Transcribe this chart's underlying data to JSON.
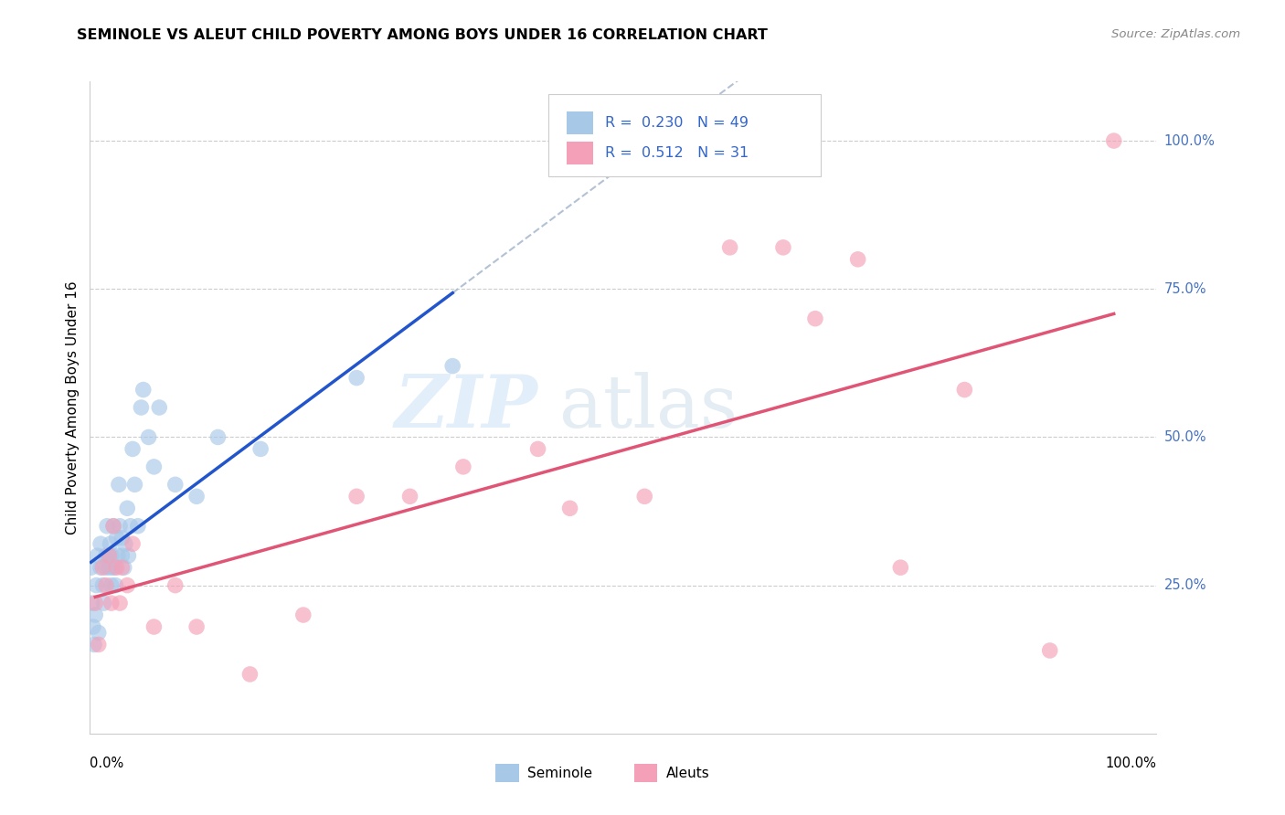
{
  "title": "SEMINOLE VS ALEUT CHILD POVERTY AMONG BOYS UNDER 16 CORRELATION CHART",
  "source": "Source: ZipAtlas.com",
  "ylabel": "Child Poverty Among Boys Under 16",
  "watermark_part1": "ZIP",
  "watermark_part2": "atlas",
  "legend_seminole": "Seminole",
  "legend_aleuts": "Aleuts",
  "r_seminole": 0.23,
  "n_seminole": 49,
  "r_aleuts": 0.512,
  "n_aleuts": 31,
  "seminole_color": "#a8c8e8",
  "aleuts_color": "#f4a0b8",
  "trend_seminole_color": "#2255cc",
  "trend_aleuts_color": "#e05575",
  "trend_dashed_color": "#aabbd0",
  "ytick_labels": [
    "25.0%",
    "50.0%",
    "75.0%",
    "100.0%"
  ],
  "ytick_positions": [
    0.25,
    0.5,
    0.75,
    1.0
  ],
  "seminole_x": [
    0.001,
    0.002,
    0.003,
    0.004,
    0.005,
    0.006,
    0.007,
    0.008,
    0.01,
    0.01,
    0.012,
    0.013,
    0.015,
    0.015,
    0.016,
    0.017,
    0.018,
    0.019,
    0.02,
    0.02,
    0.021,
    0.022,
    0.023,
    0.024,
    0.025,
    0.026,
    0.027,
    0.028,
    0.03,
    0.03,
    0.032,
    0.033,
    0.035,
    0.036,
    0.038,
    0.04,
    0.042,
    0.045,
    0.048,
    0.05,
    0.055,
    0.06,
    0.065,
    0.08,
    0.1,
    0.12,
    0.16,
    0.25,
    0.34
  ],
  "seminole_y": [
    0.28,
    0.22,
    0.18,
    0.15,
    0.2,
    0.25,
    0.3,
    0.17,
    0.32,
    0.28,
    0.25,
    0.22,
    0.3,
    0.28,
    0.35,
    0.3,
    0.28,
    0.32,
    0.3,
    0.25,
    0.28,
    0.35,
    0.28,
    0.25,
    0.33,
    0.3,
    0.42,
    0.35,
    0.33,
    0.3,
    0.28,
    0.32,
    0.38,
    0.3,
    0.35,
    0.48,
    0.42,
    0.35,
    0.55,
    0.58,
    0.5,
    0.45,
    0.55,
    0.42,
    0.4,
    0.5,
    0.48,
    0.6,
    0.62
  ],
  "aleuts_x": [
    0.005,
    0.008,
    0.012,
    0.015,
    0.018,
    0.02,
    0.022,
    0.025,
    0.028,
    0.03,
    0.035,
    0.04,
    0.06,
    0.08,
    0.1,
    0.15,
    0.2,
    0.25,
    0.3,
    0.35,
    0.42,
    0.45,
    0.52,
    0.6,
    0.65,
    0.68,
    0.72,
    0.76,
    0.82,
    0.9,
    0.96
  ],
  "aleuts_y": [
    0.22,
    0.15,
    0.28,
    0.25,
    0.3,
    0.22,
    0.35,
    0.28,
    0.22,
    0.28,
    0.25,
    0.32,
    0.18,
    0.25,
    0.18,
    0.1,
    0.2,
    0.4,
    0.4,
    0.45,
    0.48,
    0.38,
    0.4,
    0.82,
    0.82,
    0.7,
    0.8,
    0.28,
    0.58,
    0.14,
    1.0
  ]
}
